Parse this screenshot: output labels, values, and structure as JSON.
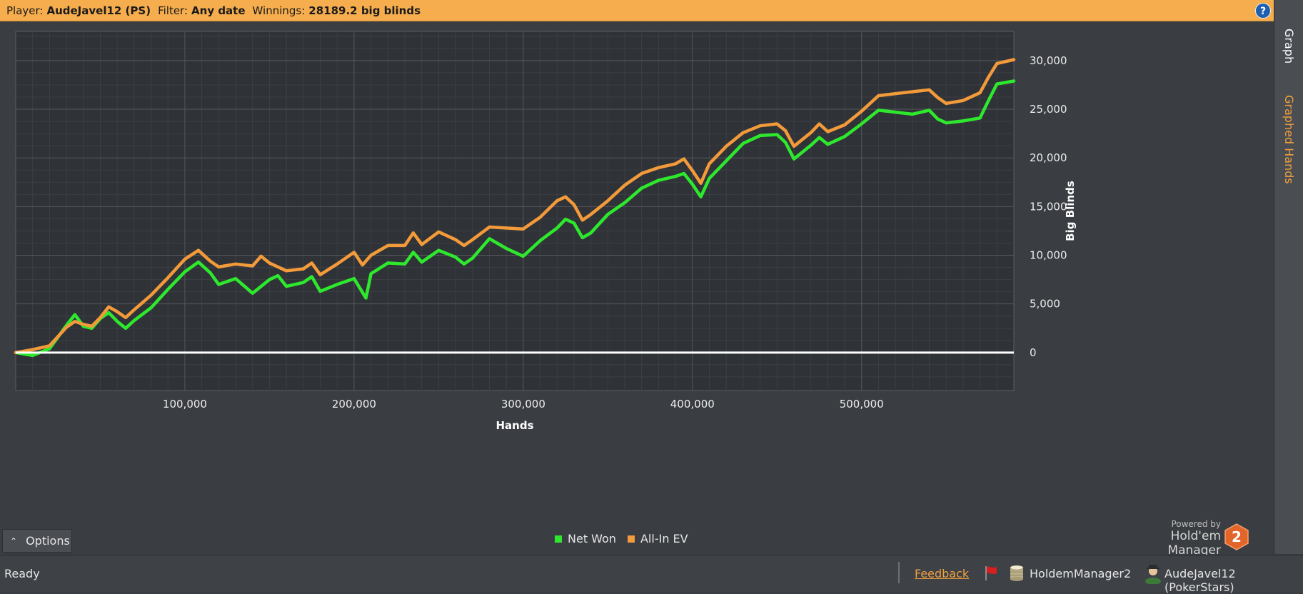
{
  "header": {
    "player_label": "Player:",
    "player_value": "AudeJavel12 (PS)",
    "filter_label": "Filter:",
    "filter_value": "Any date",
    "winnings_label": "Winnings:",
    "winnings_value": "28189.2 big blinds",
    "help_icon": "?"
  },
  "side_tabs": {
    "graph": "Graph",
    "graphed_hands": "Graphed Hands"
  },
  "chart_data": {
    "type": "line",
    "xlabel": "Hands",
    "ylabel": "Big Blinds",
    "xlim": [
      0,
      590000
    ],
    "ylim": [
      -3900,
      33000
    ],
    "x_ticks": [
      100000,
      200000,
      300000,
      400000,
      500000
    ],
    "x_tick_labels": [
      "100,000",
      "200,000",
      "300,000",
      "400,000",
      "500,000"
    ],
    "y_ticks": [
      0,
      5000,
      10000,
      15000,
      20000,
      25000,
      30000
    ],
    "y_tick_labels": [
      "0",
      "5,000",
      "10,000",
      "15,000",
      "20,000",
      "25,000",
      "30,000"
    ],
    "grid": true,
    "legend_position": "bottom-center",
    "series": [
      {
        "name": "Net Won",
        "color": "#2ee82e",
        "points": [
          [
            0,
            0
          ],
          [
            10000,
            -300
          ],
          [
            20000,
            400
          ],
          [
            30000,
            2800
          ],
          [
            35000,
            3900
          ],
          [
            40000,
            2700
          ],
          [
            45000,
            2500
          ],
          [
            50000,
            3500
          ],
          [
            55000,
            4100
          ],
          [
            60000,
            3200
          ],
          [
            65000,
            2500
          ],
          [
            70000,
            3300
          ],
          [
            80000,
            4600
          ],
          [
            90000,
            6500
          ],
          [
            100000,
            8300
          ],
          [
            108000,
            9300
          ],
          [
            115000,
            8200
          ],
          [
            120000,
            7000
          ],
          [
            130000,
            7600
          ],
          [
            140000,
            6100
          ],
          [
            150000,
            7500
          ],
          [
            155000,
            7900
          ],
          [
            160000,
            6800
          ],
          [
            170000,
            7200
          ],
          [
            175000,
            7800
          ],
          [
            180000,
            6300
          ],
          [
            190000,
            7000
          ],
          [
            200000,
            7600
          ],
          [
            207000,
            5600
          ],
          [
            210000,
            8100
          ],
          [
            220000,
            9200
          ],
          [
            230000,
            9100
          ],
          [
            235000,
            10300
          ],
          [
            240000,
            9300
          ],
          [
            250000,
            10500
          ],
          [
            260000,
            9800
          ],
          [
            265000,
            9100
          ],
          [
            270000,
            9700
          ],
          [
            280000,
            11700
          ],
          [
            290000,
            10700
          ],
          [
            300000,
            9900
          ],
          [
            310000,
            11500
          ],
          [
            320000,
            12800
          ],
          [
            325000,
            13700
          ],
          [
            330000,
            13300
          ],
          [
            335000,
            11800
          ],
          [
            340000,
            12300
          ],
          [
            350000,
            14200
          ],
          [
            360000,
            15400
          ],
          [
            370000,
            16900
          ],
          [
            380000,
            17700
          ],
          [
            390000,
            18100
          ],
          [
            395000,
            18400
          ],
          [
            400000,
            17300
          ],
          [
            405000,
            16000
          ],
          [
            410000,
            17900
          ],
          [
            420000,
            19700
          ],
          [
            430000,
            21500
          ],
          [
            440000,
            22300
          ],
          [
            450000,
            22400
          ],
          [
            455000,
            21600
          ],
          [
            460000,
            19900
          ],
          [
            470000,
            21300
          ],
          [
            475000,
            22100
          ],
          [
            480000,
            21400
          ],
          [
            490000,
            22200
          ],
          [
            500000,
            23500
          ],
          [
            510000,
            24900
          ],
          [
            520000,
            24700
          ],
          [
            530000,
            24500
          ],
          [
            540000,
            24900
          ],
          [
            545000,
            24000
          ],
          [
            550000,
            23600
          ],
          [
            560000,
            23800
          ],
          [
            570000,
            24100
          ],
          [
            575000,
            25900
          ],
          [
            580000,
            27600
          ],
          [
            590000,
            27900
          ]
        ]
      },
      {
        "name": "All-In EV",
        "color": "#f39a3a",
        "points": [
          [
            0,
            0
          ],
          [
            10000,
            300
          ],
          [
            20000,
            700
          ],
          [
            30000,
            2600
          ],
          [
            35000,
            3200
          ],
          [
            40000,
            2900
          ],
          [
            45000,
            2700
          ],
          [
            50000,
            3600
          ],
          [
            55000,
            4700
          ],
          [
            60000,
            4200
          ],
          [
            65000,
            3600
          ],
          [
            70000,
            4400
          ],
          [
            80000,
            5900
          ],
          [
            90000,
            7700
          ],
          [
            100000,
            9600
          ],
          [
            108000,
            10500
          ],
          [
            115000,
            9400
          ],
          [
            120000,
            8800
          ],
          [
            130000,
            9100
          ],
          [
            140000,
            8900
          ],
          [
            145000,
            9900
          ],
          [
            150000,
            9200
          ],
          [
            160000,
            8400
          ],
          [
            170000,
            8600
          ],
          [
            175000,
            9200
          ],
          [
            180000,
            8000
          ],
          [
            190000,
            9100
          ],
          [
            200000,
            10300
          ],
          [
            205000,
            9000
          ],
          [
            210000,
            10000
          ],
          [
            220000,
            11000
          ],
          [
            230000,
            11000
          ],
          [
            235000,
            12300
          ],
          [
            240000,
            11100
          ],
          [
            250000,
            12400
          ],
          [
            260000,
            11600
          ],
          [
            265000,
            11000
          ],
          [
            270000,
            11600
          ],
          [
            280000,
            12900
          ],
          [
            290000,
            12800
          ],
          [
            300000,
            12700
          ],
          [
            310000,
            13900
          ],
          [
            320000,
            15600
          ],
          [
            325000,
            16000
          ],
          [
            330000,
            15200
          ],
          [
            335000,
            13600
          ],
          [
            340000,
            14200
          ],
          [
            350000,
            15600
          ],
          [
            360000,
            17200
          ],
          [
            370000,
            18400
          ],
          [
            380000,
            19000
          ],
          [
            390000,
            19400
          ],
          [
            395000,
            19900
          ],
          [
            400000,
            18700
          ],
          [
            405000,
            17400
          ],
          [
            410000,
            19400
          ],
          [
            420000,
            21200
          ],
          [
            430000,
            22600
          ],
          [
            440000,
            23300
          ],
          [
            450000,
            23500
          ],
          [
            455000,
            22800
          ],
          [
            460000,
            21200
          ],
          [
            470000,
            22600
          ],
          [
            475000,
            23500
          ],
          [
            480000,
            22700
          ],
          [
            490000,
            23400
          ],
          [
            500000,
            24800
          ],
          [
            510000,
            26400
          ],
          [
            520000,
            26600
          ],
          [
            530000,
            26800
          ],
          [
            540000,
            27000
          ],
          [
            545000,
            26200
          ],
          [
            550000,
            25600
          ],
          [
            560000,
            25900
          ],
          [
            570000,
            26700
          ],
          [
            575000,
            28300
          ],
          [
            580000,
            29700
          ],
          [
            590000,
            30100
          ]
        ]
      }
    ]
  },
  "options_label": "Options",
  "powered_by": {
    "line1": "Powered by",
    "line2": "Hold'em Manager",
    "badge": "2"
  },
  "status": {
    "ready": "Ready",
    "feedback": "Feedback",
    "database": "HoldemManager2",
    "user": "AudeJavel12 (PokerStars)"
  }
}
